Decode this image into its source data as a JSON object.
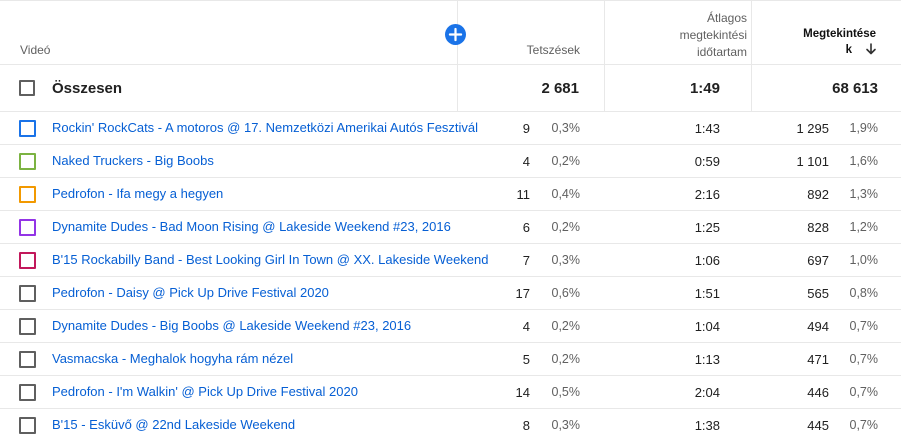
{
  "header": {
    "video": "Videó",
    "likes": "Tetszések",
    "avg_line1": "Átlagos",
    "avg_line2": "megtekintési",
    "avg_line3": "időtartam",
    "views_line1": "Megtekintése",
    "views_line2": "k",
    "add_metric_icon": "plus-icon",
    "sort_icon": "arrow-down-icon"
  },
  "total": {
    "label": "Összesen",
    "likes": "2 681",
    "avg": "1:49",
    "views": "68 613"
  },
  "rows": [
    {
      "title": "Rockin' RockCats - A motoros @ 17. Nemzetközi Amerikai Autós Fesztivál",
      "likes": "9",
      "likes_pct": "0,3%",
      "avg": "1:43",
      "views": "1 295",
      "views_pct": "1,9%",
      "color": "#1a73e8"
    },
    {
      "title": "Naked Truckers - Big Boobs",
      "likes": "4",
      "likes_pct": "0,2%",
      "avg": "0:59",
      "views": "1 101",
      "views_pct": "1,6%",
      "color": "#7cb342"
    },
    {
      "title": "Pedrofon - Ifa megy a hegyen",
      "likes": "11",
      "likes_pct": "0,4%",
      "avg": "2:16",
      "views": "892",
      "views_pct": "1,3%",
      "color": "#f29900"
    },
    {
      "title": "Dynamite Dudes - Bad Moon Rising @ Lakeside Weekend #23, 2016",
      "likes": "6",
      "likes_pct": "0,2%",
      "avg": "1:25",
      "views": "828",
      "views_pct": "1,2%",
      "color": "#9334e6"
    },
    {
      "title": "B'15 Rockabilly Band - Best Looking Girl In Town @ XX. Lakeside Weekend",
      "likes": "7",
      "likes_pct": "0,3%",
      "avg": "1:06",
      "views": "697",
      "views_pct": "1,0%",
      "color": "#c2185b"
    },
    {
      "title": "Pedrofon - Daisy @ Pick Up Drive Festival 2020",
      "likes": "17",
      "likes_pct": "0,6%",
      "avg": "1:51",
      "views": "565",
      "views_pct": "0,8%",
      "color": "#5f5f5f"
    },
    {
      "title": "Dynamite Dudes - Big Boobs @ Lakeside Weekend #23, 2016",
      "likes": "4",
      "likes_pct": "0,2%",
      "avg": "1:04",
      "views": "494",
      "views_pct": "0,7%",
      "color": "#5f5f5f"
    },
    {
      "title": "Vasmacska - Meghalok hogyha rám nézel",
      "likes": "5",
      "likes_pct": "0,2%",
      "avg": "1:13",
      "views": "471",
      "views_pct": "0,7%",
      "color": "#5f5f5f"
    },
    {
      "title": "Pedrofon - I'm Walkin' @ Pick Up Drive Festival 2020",
      "likes": "14",
      "likes_pct": "0,5%",
      "avg": "2:04",
      "views": "446",
      "views_pct": "0,7%",
      "color": "#5f5f5f"
    },
    {
      "title": "B'15 - Esküvő @ 22nd Lakeside Weekend",
      "likes": "8",
      "likes_pct": "0,3%",
      "avg": "1:38",
      "views": "445",
      "views_pct": "0,7%",
      "color": "#5f5f5f"
    }
  ]
}
